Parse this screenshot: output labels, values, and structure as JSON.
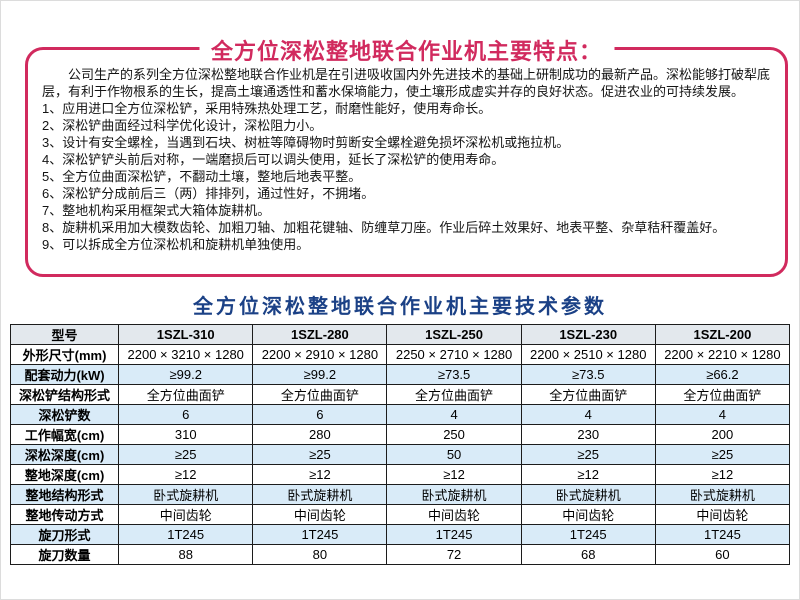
{
  "colors": {
    "accent": "#d12a5e",
    "spec_title": "#1b4186",
    "header_bg": "#e3e8ed",
    "alt_row_bg": "#d9ebf8",
    "table_border": "#1c1c1c"
  },
  "features": {
    "title": "全方位深松整地联合作业机主要特点：",
    "intro": "公司生产的系列全方位深松整地联合作业机是在引进吸收国内外先进技术的基础上研制成功的最新产品。深松能够打破犁底层，有利于作物根系的生长，提高土壤通透性和蓄水保墒能力，使土壤形成虚实并存的良好状态。促进农业的可持续发展。",
    "items": [
      "1、应用进口全方位深松铲，采用特殊热处理工艺，耐磨性能好，使用寿命长。",
      "2、深松铲曲面经过科学优化设计，深松阻力小。",
      "3、设计有安全螺栓，当遇到石块、树桩等障碍物时剪断安全螺栓避免损坏深松机或拖拉机。",
      "4、深松铲铲头前后对称，一端磨损后可以调头使用，延长了深松铲的使用寿命。",
      "5、全方位曲面深松铲，不翻动土壤，整地后地表平整。",
      "6、深松铲分成前后三（两）排排列，通过性好，不拥堵。",
      "7、整地机构采用框架式大箱体旋耕机。",
      "8、旋耕机采用加大模数齿轮、加粗刀轴、加粗花键轴、防缠草刀座。作业后碎土效果好、地表平整、杂草秸秆覆盖好。",
      "9、可以拆成全方位深松机和旋耕机单独使用。"
    ]
  },
  "specs": {
    "title": "全方位深松整地联合作业机主要技术参数",
    "columns": [
      "型号",
      "1SZL-310",
      "1SZL-280",
      "1SZL-250",
      "1SZL-230",
      "1SZL-200"
    ],
    "rows": [
      {
        "label": "外形尺寸(mm)",
        "values": [
          "2200 × 3210 × 1280",
          "2200 × 2910 × 1280",
          "2250 × 2710 × 1280",
          "2200 × 2510 × 1280",
          "2200 × 2210 × 1280"
        ]
      },
      {
        "label": "配套动力(kW)",
        "values": [
          "≥99.2",
          "≥99.2",
          "≥73.5",
          "≥73.5",
          "≥66.2"
        ]
      },
      {
        "label": "深松铲结构形式",
        "values": [
          "全方位曲面铲",
          "全方位曲面铲",
          "全方位曲面铲",
          "全方位曲面铲",
          "全方位曲面铲"
        ]
      },
      {
        "label": "深松铲数",
        "values": [
          "6",
          "6",
          "4",
          "4",
          "4"
        ]
      },
      {
        "label": "工作幅宽(cm)",
        "values": [
          "310",
          "280",
          "250",
          "230",
          "200"
        ]
      },
      {
        "label": "深松深度(cm)",
        "values": [
          "≥25",
          "≥25",
          "50",
          "≥25",
          "≥25"
        ]
      },
      {
        "label": "整地深度(cm)",
        "values": [
          "≥12",
          "≥12",
          "≥12",
          "≥12",
          "≥12"
        ]
      },
      {
        "label": "整地结构形式",
        "values": [
          "卧式旋耕机",
          "卧式旋耕机",
          "卧式旋耕机",
          "卧式旋耕机",
          "卧式旋耕机"
        ]
      },
      {
        "label": "整地传动方式",
        "values": [
          "中间齿轮",
          "中间齿轮",
          "中间齿轮",
          "中间齿轮",
          "中间齿轮"
        ]
      },
      {
        "label": "旋刀形式",
        "values": [
          "1T245",
          "1T245",
          "1T245",
          "1T245",
          "1T245"
        ]
      },
      {
        "label": "旋刀数量",
        "values": [
          "88",
          "80",
          "72",
          "68",
          "60"
        ]
      }
    ]
  }
}
